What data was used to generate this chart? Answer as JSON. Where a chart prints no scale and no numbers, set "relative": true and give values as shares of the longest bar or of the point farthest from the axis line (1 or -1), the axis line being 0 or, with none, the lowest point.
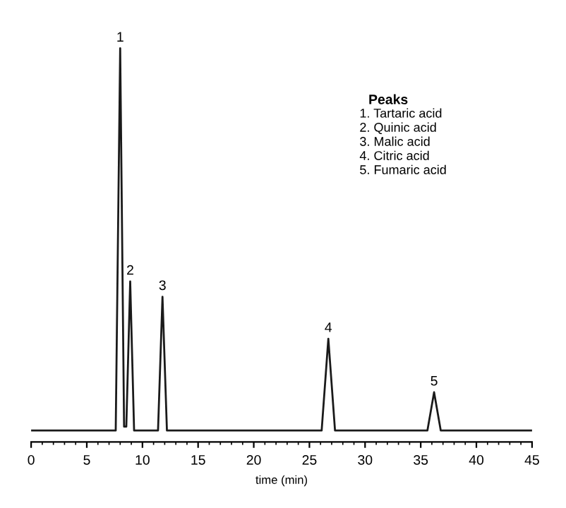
{
  "chart_data": {
    "type": "line",
    "relative": true,
    "xlabel": "time (min)",
    "x": [
      0,
      7.6,
      8.0,
      8.35,
      8.55,
      8.9,
      9.25,
      11.4,
      11.8,
      12.2,
      26.1,
      26.7,
      27.3,
      35.6,
      36.2,
      36.8,
      45
    ],
    "series": [
      {
        "color": "#1a1a1a",
        "values": [
          0,
          0,
          1,
          0.01,
          0.01,
          0.39,
          0,
          0,
          0.35,
          0,
          0,
          0.24,
          0,
          0,
          0.1,
          0,
          0
        ]
      }
    ],
    "xlim": [
      0,
      45
    ],
    "xticks": [
      0,
      5,
      10,
      15,
      20,
      25,
      30,
      35,
      40,
      45
    ],
    "tick_labels": "x",
    "grid": false,
    "legend": false,
    "marker": "none",
    "line_style": "solid",
    "annotations": [
      {
        "text": "1",
        "x": 8.0,
        "y": 1
      },
      {
        "text": "2",
        "x": 8.9,
        "y": 0.39
      },
      {
        "text": "3",
        "x": 11.8,
        "y": 0.35
      },
      {
        "text": "4",
        "x": 26.7,
        "y": 0.24
      },
      {
        "text": "5",
        "x": 36.2,
        "y": 0.1
      },
      "Peaks",
      "1. Tartaric acid",
      "2. Quinic acid",
      "3. Malic acid",
      "4. Citric acid",
      "5. Fumaric acid"
    ]
  }
}
